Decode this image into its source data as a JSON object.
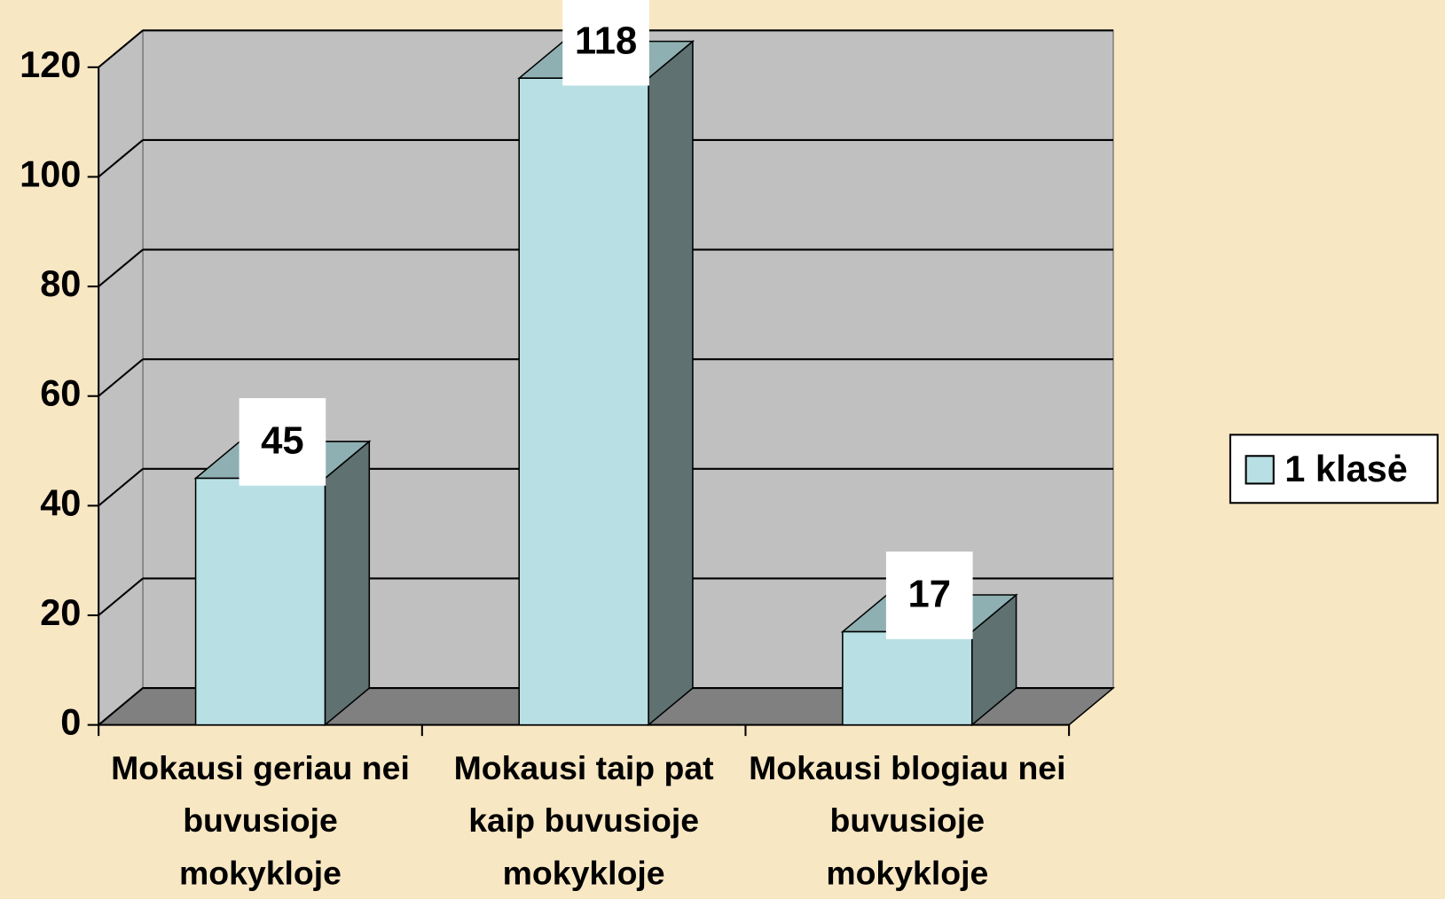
{
  "chart_data": {
    "type": "bar3d",
    "categories": [
      "Mokausi geriau nei buvusioje mokykloje",
      "Mokausi taip pat kaip buvusioje mokykloje",
      "Mokausi blogiau nei buvusioje mokykloje"
    ],
    "series": [
      {
        "name": "1 klasė",
        "color": "#b8e0e4",
        "values": [
          45,
          118,
          17
        ]
      }
    ],
    "ylim": [
      0,
      120
    ],
    "yticks": [
      0,
      20,
      40,
      60,
      80,
      100,
      120
    ],
    "grid": true,
    "legend": "right"
  }
}
